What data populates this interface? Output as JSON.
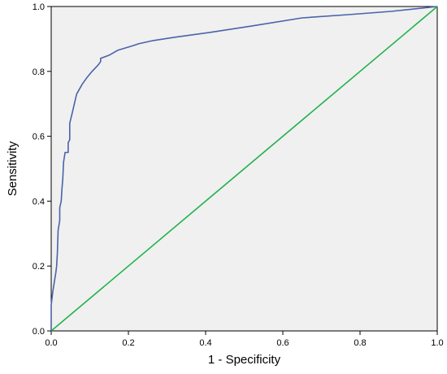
{
  "chart_data": {
    "type": "line",
    "xlabel": "1 - Specificity",
    "ylabel": "Sensitivity",
    "xlim": [
      0,
      1
    ],
    "ylim": [
      0,
      1
    ],
    "x_ticks": [
      "0.0",
      "0.2",
      "0.4",
      "0.6",
      "0.8",
      "1.0"
    ],
    "y_ticks": [
      "0.0",
      "0.2",
      "0.4",
      "0.6",
      "0.8",
      "1.0"
    ],
    "grid": false,
    "legend": "none",
    "background_color": "#f0f0f0",
    "series": [
      {
        "color": "#4a63aa",
        "x": [
          0.0,
          0.0,
          0.004,
          0.008,
          0.012,
          0.014,
          0.016,
          0.018,
          0.022,
          0.022,
          0.026,
          0.028,
          0.03,
          0.032,
          0.036,
          0.038,
          0.044,
          0.044,
          0.048,
          0.048,
          0.054,
          0.06,
          0.066,
          0.08,
          0.092,
          0.106,
          0.122,
          0.128,
          0.128,
          0.15,
          0.172,
          0.214,
          0.226,
          0.264,
          0.318,
          0.41,
          0.52,
          0.65,
          0.77,
          0.88,
          1.0
        ],
        "y": [
          0.0,
          0.08,
          0.12,
          0.15,
          0.18,
          0.2,
          0.24,
          0.31,
          0.34,
          0.38,
          0.4,
          0.44,
          0.47,
          0.52,
          0.55,
          0.55,
          0.55,
          0.58,
          0.59,
          0.64,
          0.67,
          0.7,
          0.73,
          0.76,
          0.78,
          0.8,
          0.82,
          0.83,
          0.84,
          0.85,
          0.865,
          0.88,
          0.885,
          0.895,
          0.905,
          0.92,
          0.94,
          0.965,
          0.975,
          0.985,
          1.0
        ]
      },
      {
        "color": "#22b14c",
        "x": [
          0,
          1
        ],
        "y": [
          0,
          1
        ]
      }
    ]
  }
}
